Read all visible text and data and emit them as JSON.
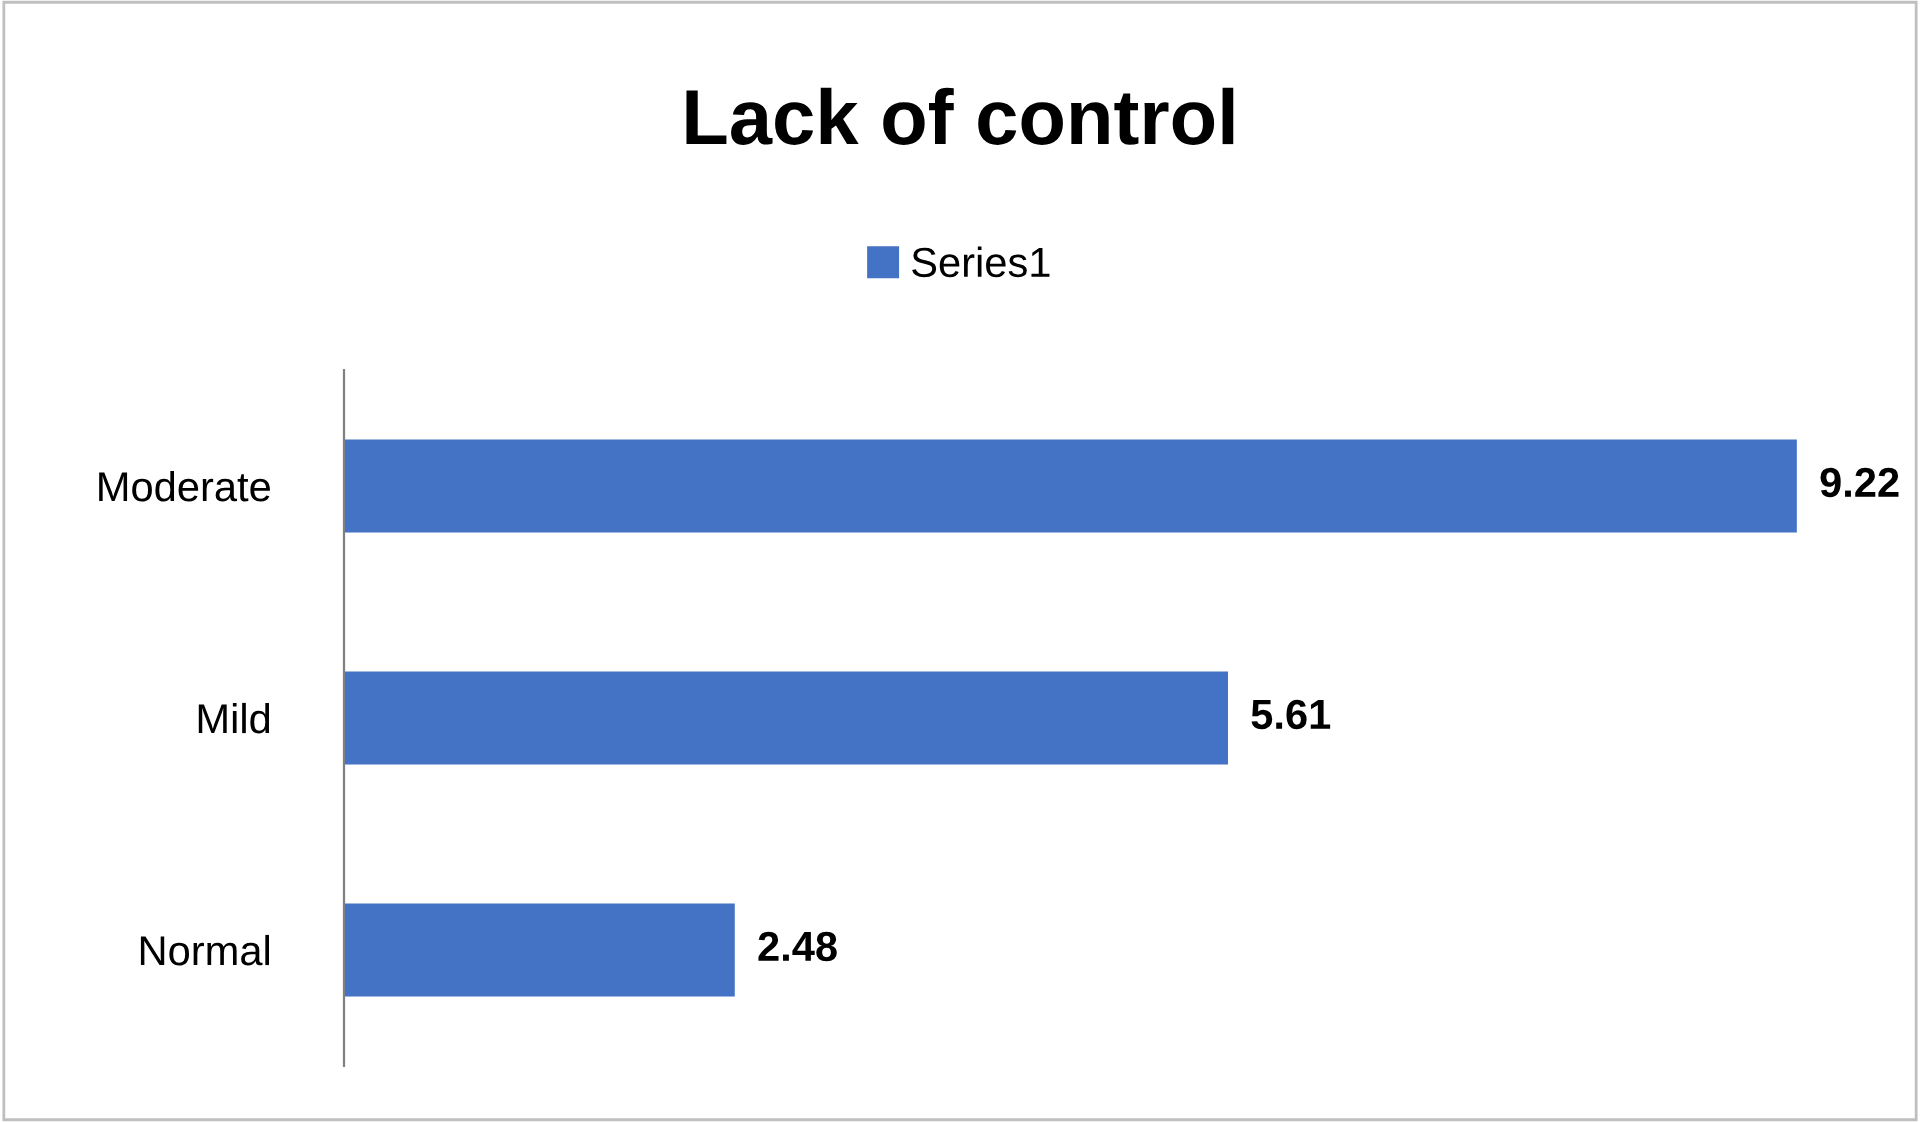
{
  "chart_data": {
    "type": "bar",
    "title": "Lack of control",
    "orientation": "horizontal",
    "categories": [
      "Moderate",
      "Mild",
      "Normal"
    ],
    "series": [
      {
        "name": "Series1",
        "color": "#4472c4",
        "values": [
          9.22,
          5.61,
          2.48
        ]
      }
    ],
    "data_labels": true,
    "legend": "top",
    "grid": false,
    "tick_labels": "y"
  }
}
